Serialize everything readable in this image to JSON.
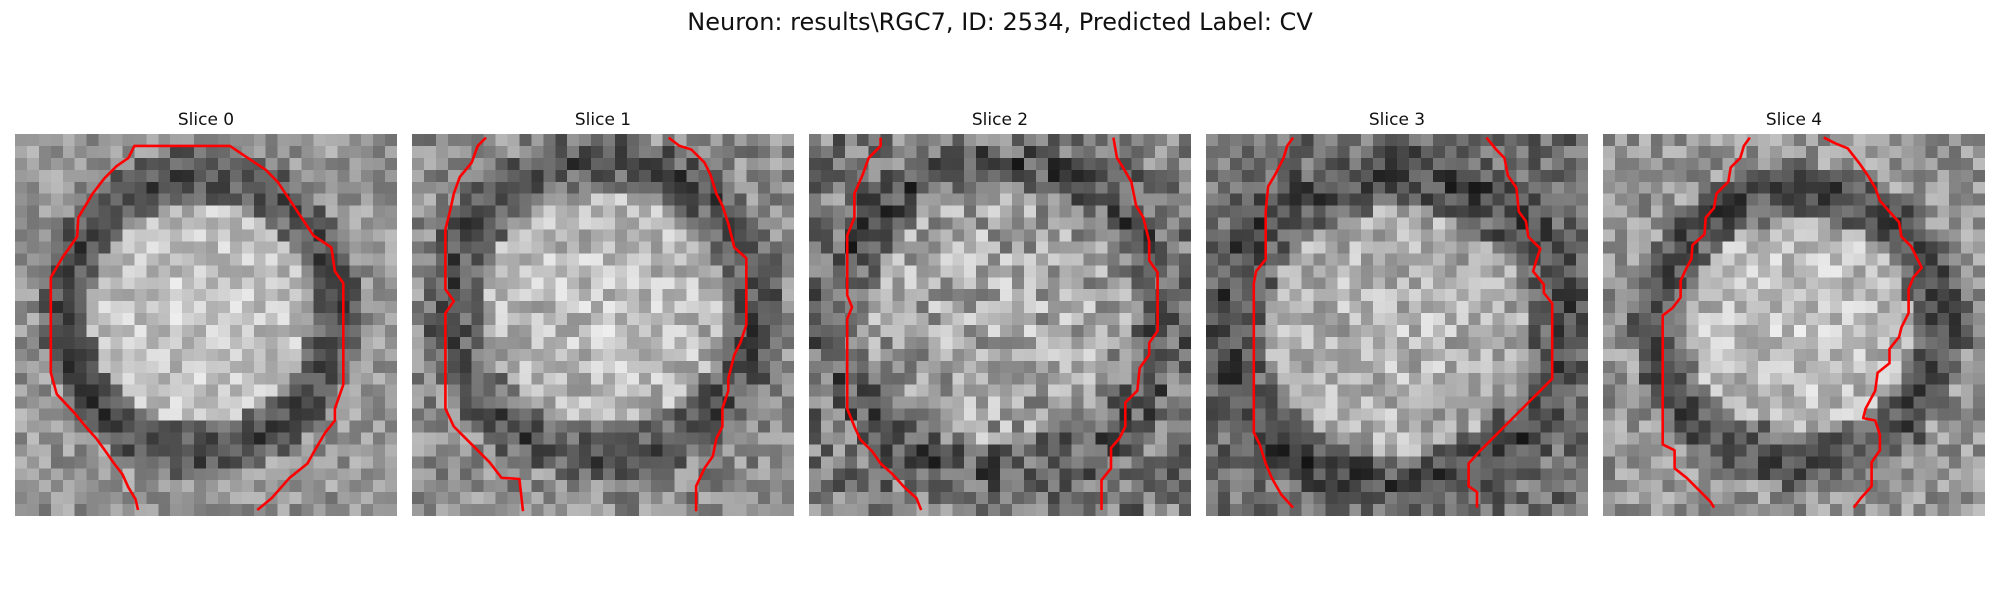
{
  "figure": {
    "title": "Neuron: results\\RGC7, ID: 2534, Predicted Label: CV",
    "contour_color": "#ff0000",
    "colormap": "grayscale"
  },
  "panels": [
    {
      "title": "Slice 0",
      "image": "grayscale pixel image of a round cell with bright interior and dark rim",
      "contour": {
        "left": true,
        "right": true,
        "shape": "encloses cell, open at bottom"
      }
    },
    {
      "title": "Slice 1",
      "image": "grayscale pixel image of a round cell with dark rim at bottom",
      "contour": {
        "left": true,
        "right": true
      }
    },
    {
      "title": "Slice 2",
      "image": "grayscale pixel image with noisy textured interior",
      "contour": {
        "left": true,
        "right": true
      }
    },
    {
      "title": "Slice 3",
      "image": "grayscale pixel image with dark band at top and bottom",
      "contour": {
        "left": true,
        "right": true
      }
    },
    {
      "title": "Slice 4",
      "image": "grayscale pixel image of a round cell with dark rim",
      "contour": {
        "left": true,
        "right": true
      }
    }
  ]
}
